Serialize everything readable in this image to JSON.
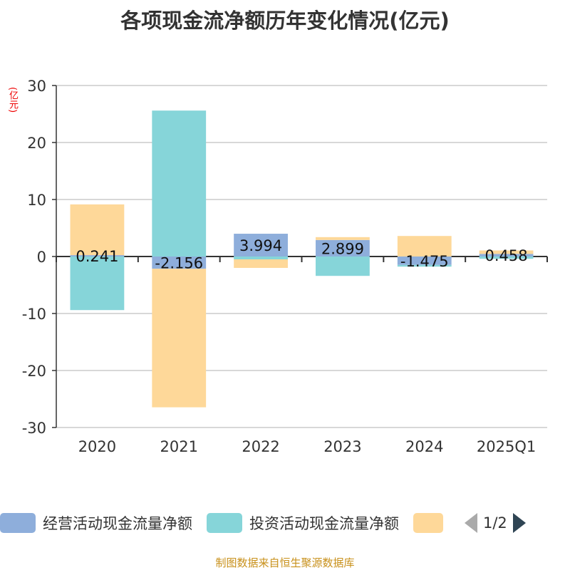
{
  "title": "各项现金流净额历年变化情况(亿元)",
  "unit": "(亿元)",
  "source": "制图数据来自恒生聚源数据库",
  "legend_page": "1/2",
  "chart_data": {
    "type": "bar",
    "stacked": true,
    "categories": [
      "2020",
      "2021",
      "2022",
      "2023",
      "2024",
      "2025Q1"
    ],
    "ylim": [
      -30,
      30
    ],
    "yticks": [
      30,
      20,
      10,
      0,
      -10,
      -20,
      -30
    ],
    "ylabel": "(亿元)",
    "series": [
      {
        "name": "经营活动现金流量净额",
        "color": "#8eaedb",
        "values": [
          0.241,
          -2.156,
          3.994,
          2.899,
          -1.475,
          0.458
        ],
        "labels": [
          "0.241",
          "-2.156",
          "3.994",
          "2.899",
          "-1.475",
          "0.458"
        ]
      },
      {
        "name": "投资活动现金流量净额",
        "color": "#86d5d9",
        "values": [
          -9.4,
          25.6,
          -0.5,
          -3.4,
          -0.3,
          -0.4
        ]
      },
      {
        "name": "",
        "color": "#fed899",
        "values": [
          8.9,
          -24.3,
          -1.5,
          0.5,
          3.6,
          0.6
        ]
      }
    ]
  }
}
